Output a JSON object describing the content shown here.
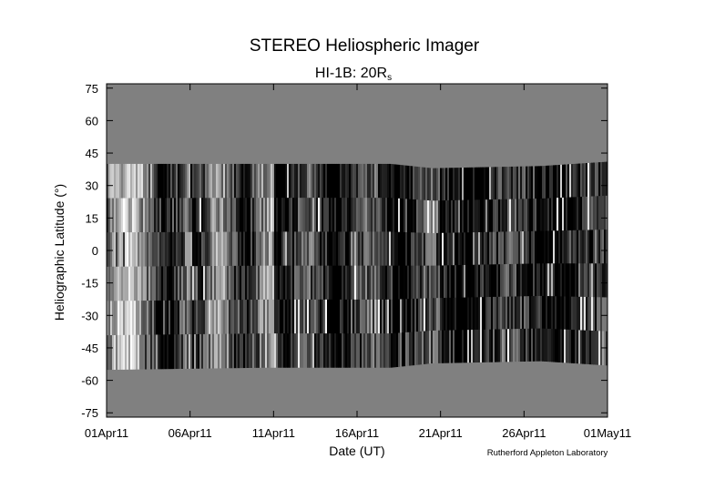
{
  "chart_data": {
    "type": "heatmap",
    "title": "STEREO Heliospheric Imager",
    "subtitle": "HI-1B: 20R",
    "subtitle_subscript": "s",
    "xlabel": "Date (UT)",
    "ylabel": "Heliographic Latitude (°)",
    "x_tick_labels": [
      "01Apr11",
      "06Apr11",
      "11Apr11",
      "16Apr11",
      "21Apr11",
      "26Apr11",
      "01May11"
    ],
    "x_tick_days": [
      0,
      5,
      10,
      15,
      20,
      25,
      30
    ],
    "y_ticks": [
      75,
      60,
      45,
      30,
      15,
      0,
      -15,
      -30,
      -45,
      -60,
      -75
    ],
    "ylim": [
      -77,
      77
    ],
    "xlim_days": [
      0,
      30
    ],
    "colorscale": "grayscale",
    "no_data_color": "#808080",
    "valid_latitude_band": [
      {
        "day": 0,
        "top": 40,
        "bottom": -55
      },
      {
        "day": 9.5,
        "top": 40,
        "bottom": -54
      },
      {
        "day": 17,
        "top": 40,
        "bottom": -54
      },
      {
        "day": 19.5,
        "top": 38,
        "bottom": -52
      },
      {
        "day": 26,
        "top": 39,
        "bottom": -51
      },
      {
        "day": 30,
        "top": 41,
        "bottom": -53
      }
    ]
  },
  "credit": "Rutherford Appleton Laboratory"
}
